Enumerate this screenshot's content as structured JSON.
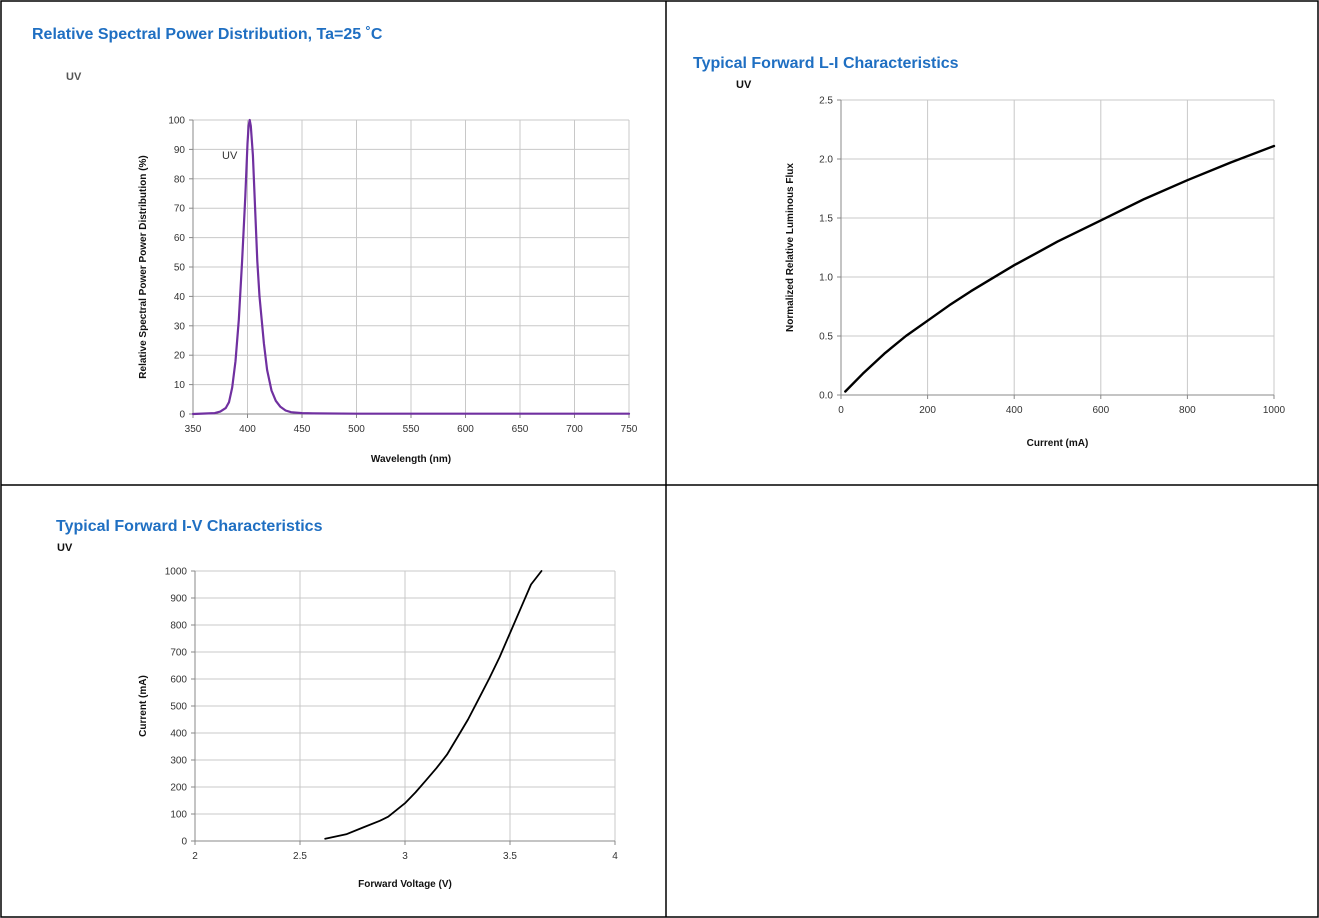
{
  "panels": [
    {
      "title": "Relative Spectral Power Distribution, Ta=25 ˚C",
      "subtitle": "UV"
    },
    {
      "title": "Typical Forward L-I Characteristics",
      "subtitle": "UV"
    },
    {
      "title": "Typical Forward I-V Characteristics",
      "subtitle": "UV"
    }
  ],
  "chart_data": [
    {
      "type": "line",
      "xlabel": "Wavelength (nm)",
      "ylabel": "Relative  Spectral Power Power Distribution (%)",
      "xlim": [
        350,
        750
      ],
      "ylim": [
        0,
        100
      ],
      "xticks": [
        350,
        400,
        450,
        500,
        550,
        600,
        650,
        700,
        750
      ],
      "yticks": [
        0,
        10,
        20,
        30,
        40,
        50,
        60,
        70,
        80,
        90,
        100
      ],
      "grid": true,
      "annotation": "UV",
      "line_color": "#7030a0",
      "series": [
        {
          "name": "UV",
          "x": [
            350,
            370,
            375,
            380,
            383,
            386,
            389,
            392,
            395,
            398,
            400,
            401,
            402,
            403,
            405,
            407,
            409,
            411,
            413,
            415,
            418,
            422,
            426,
            430,
            435,
            440,
            450,
            460,
            500,
            550,
            600,
            650,
            700,
            750
          ],
          "y": [
            0,
            0.3,
            0.8,
            2,
            4,
            9,
            18,
            32,
            52,
            74,
            92,
            98,
            100,
            98,
            88,
            70,
            52,
            40,
            32,
            24,
            15,
            8,
            4.5,
            2.5,
            1.2,
            0.6,
            0.3,
            0.2,
            0.1,
            0.1,
            0.1,
            0.1,
            0.1,
            0.1
          ]
        }
      ]
    },
    {
      "type": "line",
      "xlabel": "Current (mA)",
      "ylabel": "Normalized Relative Luminous Flux",
      "xlim": [
        0,
        1000
      ],
      "ylim": [
        0,
        2.5
      ],
      "xticks": [
        0,
        200,
        400,
        600,
        800,
        1000
      ],
      "xtick_labels": [
        "0",
        "200",
        "400",
        "600",
        "800",
        "1000"
      ],
      "yticks": [
        0,
        0.5,
        1,
        1.5,
        2,
        2.5
      ],
      "ytick_labels": [
        "0.0",
        "0.5",
        "1.0",
        "1.5",
        "2.0",
        "2.5"
      ],
      "grid": true,
      "line_color": "#000000",
      "series": [
        {
          "x": [
            10,
            50,
            100,
            150,
            200,
            250,
            300,
            350,
            400,
            450,
            500,
            600,
            700,
            800,
            900,
            1000
          ],
          "y": [
            0.03,
            0.18,
            0.35,
            0.5,
            0.63,
            0.76,
            0.88,
            0.99,
            1.1,
            1.2,
            1.3,
            1.48,
            1.66,
            1.82,
            1.97,
            2.11
          ]
        }
      ]
    },
    {
      "type": "line",
      "xlabel": "Forward Voltage (V)",
      "ylabel": "Current (mA)",
      "xlim": [
        2,
        4
      ],
      "ylim": [
        0,
        1000
      ],
      "xticks": [
        2,
        2.5,
        3,
        3.5,
        4
      ],
      "xtick_labels": [
        "2",
        "2.5",
        "3",
        "3.5",
        "4"
      ],
      "yticks": [
        0,
        100,
        200,
        300,
        400,
        500,
        600,
        700,
        800,
        900,
        1000
      ],
      "grid": true,
      "line_color": "#000000",
      "series": [
        {
          "x": [
            2.62,
            2.72,
            2.8,
            2.88,
            2.92,
            2.96,
            3.0,
            3.05,
            3.1,
            3.15,
            3.2,
            3.25,
            3.3,
            3.35,
            3.4,
            3.45,
            3.5,
            3.55,
            3.6,
            3.65
          ],
          "y": [
            8,
            25,
            50,
            75,
            90,
            115,
            140,
            180,
            225,
            270,
            320,
            385,
            450,
            525,
            600,
            680,
            770,
            860,
            950,
            1000
          ]
        }
      ]
    }
  ]
}
